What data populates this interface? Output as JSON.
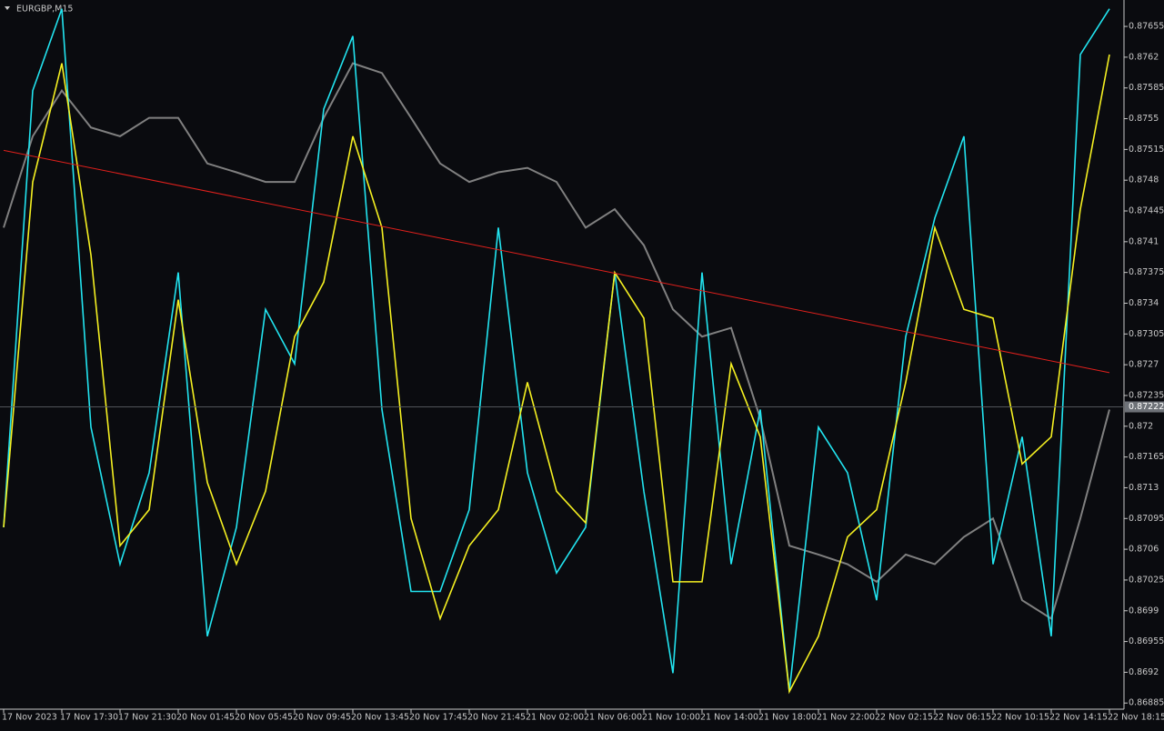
{
  "chart_data": {
    "type": "line",
    "title": "EURGBP,M15",
    "categories": [
      "17 Nov 2023",
      null,
      "17 Nov 17:30",
      null,
      "17 Nov 21:30",
      null,
      "20 Nov 01:45",
      null,
      "20 Nov 05:45",
      null,
      "20 Nov 09:45",
      null,
      "20 Nov 13:45",
      null,
      "20 Nov 17:45",
      null,
      "20 Nov 21:45",
      null,
      "21 Nov 02:00",
      null,
      "21 Nov 06:00",
      null,
      "21 Nov 10:00",
      null,
      "21 Nov 14:00",
      null,
      "21 Nov 18:00",
      null,
      "21 Nov 22:00",
      null,
      "22 Nov 02:15",
      null,
      "22 Nov 06:15",
      null,
      "22 Nov 10:15",
      null,
      "22 Nov 14:15",
      null,
      "22 Nov 18:15"
    ],
    "series": [
      {
        "color": "#808080",
        "values": [
          0.87426,
          0.8753,
          0.87582,
          0.8754,
          0.8753,
          0.87551,
          0.87551,
          0.87499,
          0.87489,
          0.87478,
          0.87478,
          0.87551,
          0.87613,
          0.87602,
          0.87551,
          0.87499,
          0.87478,
          0.87489,
          0.87494,
          0.87478,
          0.87426,
          0.87447,
          0.87406,
          0.87333,
          0.87302,
          0.87312,
          0.87209,
          0.87064,
          0.87054,
          0.87043,
          0.87023,
          0.87054,
          0.87043,
          0.87074,
          0.87095,
          0.87002,
          0.86981,
          0.87095,
          0.87219
        ]
      },
      {
        "color": "#22e4f0",
        "values": [
          0.87085,
          0.87582,
          0.87675,
          0.87199,
          0.87043,
          0.87147,
          0.87375,
          0.86961,
          0.87085,
          0.87333,
          0.87271,
          0.87561,
          0.87644,
          0.87219,
          0.87012,
          0.87012,
          0.87105,
          0.87426,
          0.87147,
          0.87033,
          0.87085,
          0.87375,
          0.87126,
          0.86919,
          0.87375,
          0.87043,
          0.87219,
          0.86898,
          0.87199,
          0.87147,
          0.87002,
          0.87302,
          0.87437,
          0.8753,
          0.87043,
          0.87188,
          0.86961,
          0.87623,
          0.87675
        ]
      },
      {
        "color": "#f5f021",
        "values": [
          0.87085,
          0.87478,
          0.87613,
          0.87395,
          0.87064,
          0.87105,
          0.87344,
          0.87136,
          0.87043,
          0.87126,
          0.87302,
          0.87364,
          0.8753,
          0.87426,
          0.87095,
          0.86981,
          0.87064,
          0.87105,
          0.8725,
          0.87126,
          0.8709,
          0.87375,
          0.87323,
          0.87023,
          0.87023,
          0.87271,
          0.87188,
          0.86898,
          0.86961,
          0.87074,
          0.87105,
          0.8725,
          0.87426,
          0.87333,
          0.87323,
          0.87157,
          0.87188,
          0.87447,
          0.87623
        ]
      }
    ],
    "trendline": {
      "color": "#e0201c",
      "values": [
        0.87514,
        0.87261
      ]
    },
    "current_price": 0.87222,
    "ylim": [
      0.86878,
      0.87683
    ],
    "yticks": [
      0.87655,
      0.8762,
      0.87585,
      0.8755,
      0.87515,
      0.8748,
      0.87445,
      0.8741,
      0.87375,
      0.8734,
      0.87305,
      0.8727,
      0.87235,
      0.872,
      0.87165,
      0.8713,
      0.87095,
      0.8706,
      0.87025,
      0.8699,
      0.86955,
      0.8692,
      0.86885
    ]
  }
}
